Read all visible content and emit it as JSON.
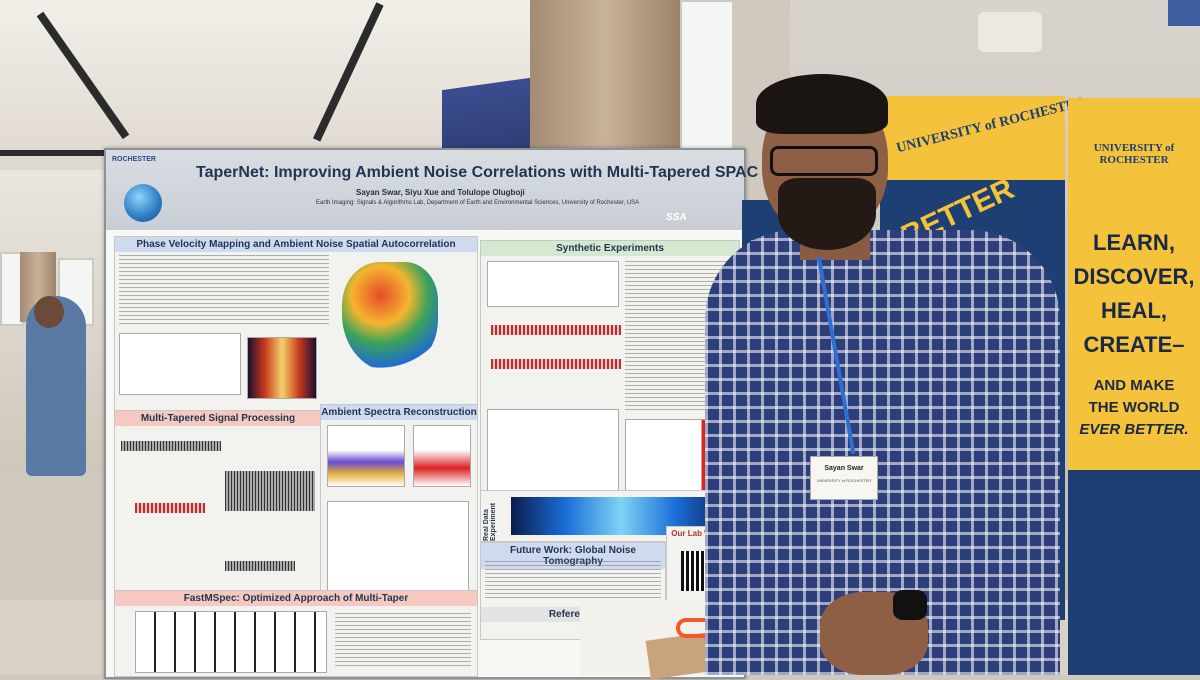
{
  "poster": {
    "title": "TaperNet: Improving Ambient Noise Correlations with Multi-Tapered SPAC",
    "authors": "Sayan Swar, Siyu Xue and Tolulope Olugboji",
    "lab": "Earth Imaging: Signals & Algorithms Lab, Department of Earth and Environmental Sciences, University of Rochester, USA",
    "logo_left": "ROCHESTER",
    "logo_ssa": "SSA",
    "sections": {
      "phase_velocity": "Phase Velocity Mapping and Ambient Noise Spatial Autocorrelation",
      "multitaper": "Multi-Tapered Signal Processing",
      "ambient_spectra": "Ambient Spectra Reconstruction",
      "synthetic": "Synthetic Experiments",
      "fastmspec": "FastMSpec: Optimized Approach of Multi-Taper",
      "future": "Future Work: Global Noise Tomography",
      "real_data": "Real Data Experiment",
      "lab_website": "Our Lab Website",
      "reference": "Reference"
    },
    "colors": {
      "header": "#c9ced6",
      "accent_red": "#b7322f",
      "accent_blue": "#1f6bd1"
    }
  },
  "banner_left": {
    "university": "UNIVERSITY of ROCHESTER",
    "words": "BETTER"
  },
  "banner_right": {
    "university": "UNIVERSITY of ROCHESTER",
    "line1": "LEARN,",
    "line2": "DISCOVER,",
    "line3": "HEAL,",
    "line4": "CREATE–",
    "line5": "AND MAKE",
    "line6": "THE WORLD",
    "line7": "EVER BETTER.",
    "colors": {
      "yellow": "#f4c23b",
      "blue": "#1e3f73"
    }
  },
  "badge": {
    "name": "Sayan Swar",
    "org": "UNIVERSITY of ROCHESTER"
  }
}
